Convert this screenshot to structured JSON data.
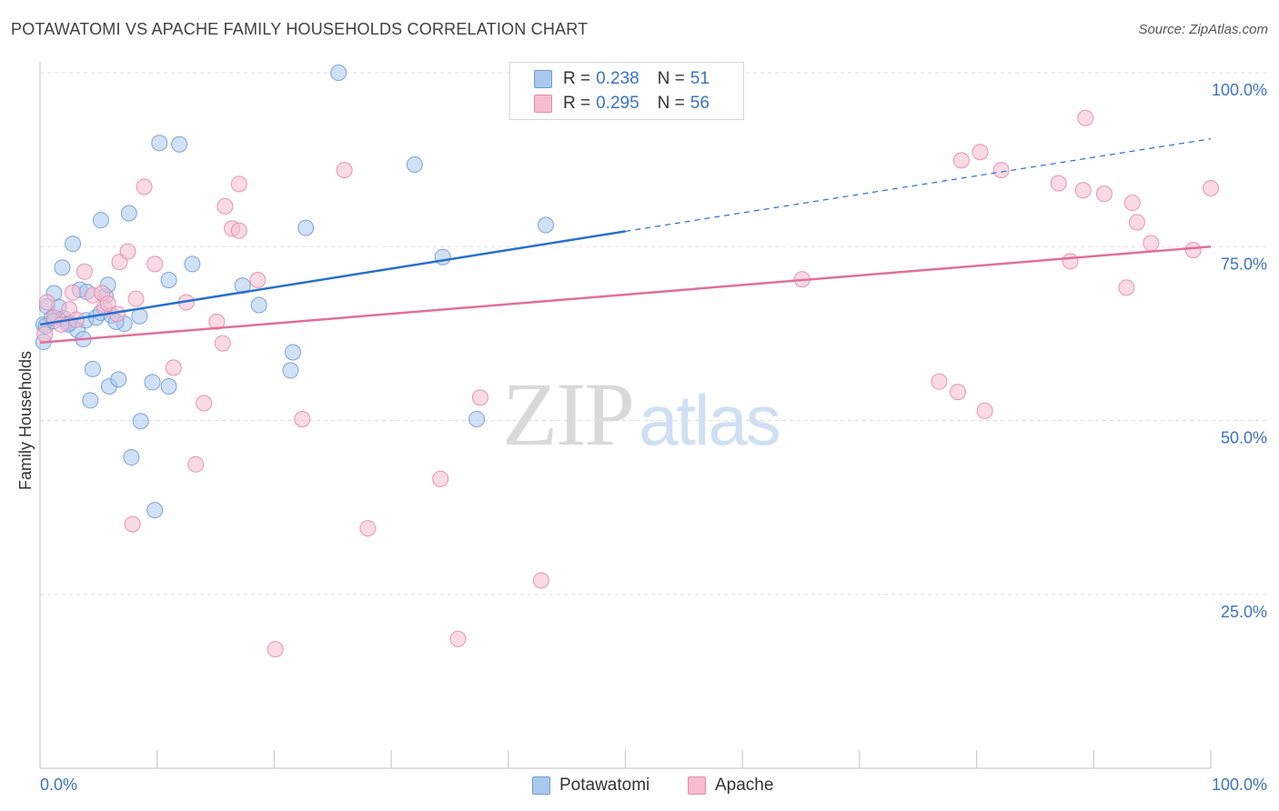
{
  "title": "POTAWATOMI VS APACHE FAMILY HOUSEHOLDS CORRELATION CHART",
  "source": "Source: ZipAtlas.com",
  "watermark": {
    "zip": "ZIP",
    "atlas": "atlas"
  },
  "colors": {
    "blue_fill": "#aac8ee",
    "blue_stroke": "#6f9bd6",
    "blue_line": "#2a6fcc",
    "pink_fill": "#f6bcd0",
    "pink_stroke": "#e58aaa",
    "pink_line": "#e0709a",
    "axis_text": "#3b73c4",
    "grid": "#dddddd"
  },
  "legend": {
    "rows": [
      {
        "series": "Potawatomi",
        "r_label": "R =",
        "r_value": "0.238",
        "n_label": "N =",
        "n_value": "51"
      },
      {
        "series": "Apache",
        "r_label": "R =",
        "r_value": "0.295",
        "n_label": "N =",
        "n_value": "56"
      }
    ]
  },
  "bottom_legend": {
    "items": [
      "Potawatomi",
      "Apache"
    ]
  },
  "chart_data": {
    "type": "scatter",
    "title": "POTAWATOMI VS APACHE FAMILY HOUSEHOLDS CORRELATION CHART",
    "xlabel": "",
    "ylabel": "Family Households",
    "xlim": [
      0,
      100
    ],
    "ylim": [
      0,
      100
    ],
    "x_tick_labels": [
      "0.0%",
      "100.0%"
    ],
    "y_tick_labels": [
      "100.0%",
      "75.0%",
      "50.0%",
      "25.0%"
    ],
    "y_ticks": [
      100,
      75,
      50,
      25
    ],
    "grid": true,
    "series": [
      {
        "name": "Potawatomi",
        "color": "#6f9bd6",
        "trend": {
          "x0": 0,
          "y0": 63.8,
          "x1": 50,
          "y1": 77.2,
          "dash_to_x": 100,
          "dash_to_y": 90.5
        },
        "points": [
          [
            0.3,
            61.3
          ],
          [
            0.3,
            63.8
          ],
          [
            0.6,
            66.4
          ],
          [
            1.0,
            64.7
          ],
          [
            1.2,
            68.3
          ],
          [
            1.6,
            66.3
          ],
          [
            1.9,
            72.0
          ],
          [
            2.0,
            64.7
          ],
          [
            2.5,
            64.0
          ],
          [
            2.8,
            75.4
          ],
          [
            3.2,
            63.0
          ],
          [
            3.4,
            68.8
          ],
          [
            3.7,
            61.7
          ],
          [
            3.9,
            64.4
          ],
          [
            4.3,
            52.9
          ],
          [
            4.5,
            57.4
          ],
          [
            4.8,
            64.8
          ],
          [
            5.2,
            65.5
          ],
          [
            5.2,
            78.8
          ],
          [
            5.6,
            67.9
          ],
          [
            5.8,
            69.5
          ],
          [
            5.9,
            54.9
          ],
          [
            6.1,
            65.1
          ],
          [
            6.7,
            55.9
          ],
          [
            7.2,
            63.9
          ],
          [
            7.6,
            79.8
          ],
          [
            7.8,
            44.7
          ],
          [
            8.5,
            65.0
          ],
          [
            8.6,
            49.9
          ],
          [
            9.6,
            55.5
          ],
          [
            9.8,
            37.1
          ],
          [
            10.2,
            89.9
          ],
          [
            11.0,
            54.9
          ],
          [
            11.0,
            70.2
          ],
          [
            11.9,
            89.7
          ],
          [
            13.0,
            72.5
          ],
          [
            17.3,
            69.4
          ],
          [
            18.7,
            66.6
          ],
          [
            21.4,
            57.2
          ],
          [
            21.6,
            59.8
          ],
          [
            22.7,
            77.7
          ],
          [
            25.5,
            100.0
          ],
          [
            32.0,
            86.8
          ],
          [
            34.4,
            73.5
          ],
          [
            37.3,
            50.2
          ],
          [
            43.2,
            78.1
          ],
          [
            0.5,
            63.6
          ],
          [
            1.2,
            64.3
          ],
          [
            2.4,
            63.8
          ],
          [
            4.0,
            68.5
          ],
          [
            6.5,
            64.2
          ]
        ]
      },
      {
        "name": "Apache",
        "color": "#e58aaa",
        "trend": {
          "x0": 0,
          "y0": 61.2,
          "x1": 100,
          "y1": 75.0
        },
        "points": [
          [
            0.4,
            62.4
          ],
          [
            0.6,
            67.0
          ],
          [
            1.2,
            64.8
          ],
          [
            1.8,
            63.8
          ],
          [
            2.5,
            66.0
          ],
          [
            2.8,
            68.4
          ],
          [
            3.1,
            64.5
          ],
          [
            3.8,
            71.4
          ],
          [
            4.5,
            68.0
          ],
          [
            5.3,
            68.3
          ],
          [
            5.5,
            66.2
          ],
          [
            5.8,
            66.8
          ],
          [
            6.6,
            65.3
          ],
          [
            6.8,
            72.8
          ],
          [
            7.5,
            74.3
          ],
          [
            7.9,
            35.1
          ],
          [
            8.2,
            67.5
          ],
          [
            8.9,
            83.6
          ],
          [
            9.8,
            72.5
          ],
          [
            11.4,
            57.6
          ],
          [
            12.5,
            67.0
          ],
          [
            13.3,
            43.7
          ],
          [
            14.0,
            52.5
          ],
          [
            15.1,
            64.2
          ],
          [
            15.6,
            61.1
          ],
          [
            15.8,
            80.8
          ],
          [
            16.4,
            77.6
          ],
          [
            17.0,
            77.3
          ],
          [
            17.0,
            84.0
          ],
          [
            18.6,
            70.2
          ],
          [
            20.1,
            17.1
          ],
          [
            22.4,
            50.2
          ],
          [
            26.0,
            86.0
          ],
          [
            28.0,
            34.5
          ],
          [
            34.2,
            41.6
          ],
          [
            35.7,
            18.6
          ],
          [
            37.6,
            53.3
          ],
          [
            42.8,
            27.0
          ],
          [
            65.1,
            70.3
          ],
          [
            76.8,
            55.6
          ],
          [
            78.4,
            54.1
          ],
          [
            78.7,
            87.4
          ],
          [
            80.3,
            88.6
          ],
          [
            80.7,
            51.4
          ],
          [
            82.1,
            86.0
          ],
          [
            87.0,
            84.1
          ],
          [
            88.0,
            72.9
          ],
          [
            89.1,
            83.1
          ],
          [
            89.3,
            93.5
          ],
          [
            90.9,
            82.6
          ],
          [
            92.8,
            69.1
          ],
          [
            93.3,
            81.3
          ],
          [
            93.7,
            78.5
          ],
          [
            94.9,
            75.5
          ],
          [
            98.5,
            74.5
          ],
          [
            100.0,
            83.4
          ]
        ]
      }
    ]
  }
}
